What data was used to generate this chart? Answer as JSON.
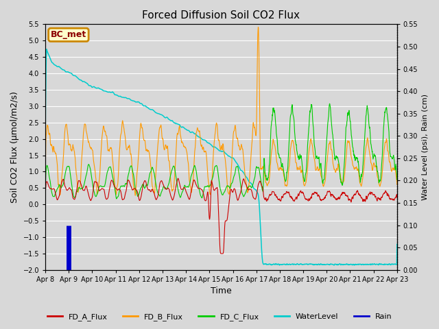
{
  "title": "Forced Diffusion Soil CO2 Flux",
  "xlabel": "Time",
  "ylabel_left": "Soil CO2 Flux (μmol/m2/s)",
  "ylabel_right": "Water Level (psi), Rain (cm)",
  "ylim_left": [
    -2.0,
    5.5
  ],
  "ylim_right": [
    0.0,
    0.55
  ],
  "xtick_labels": [
    "Apr 8",
    "Apr 9",
    "Apr 10",
    "Apr 11",
    "Apr 12",
    "Apr 13",
    "Apr 14",
    "Apr 15",
    "Apr 16",
    "Apr 17",
    "Apr 18",
    "Apr 19",
    "Apr 20",
    "Apr 21",
    "Apr 22",
    "Apr 23"
  ],
  "background_color": "#d8d8d8",
  "grid_color": "#ffffff",
  "colors": {
    "FD_A_Flux": "#cc0000",
    "FD_B_Flux": "#ff9900",
    "FD_C_Flux": "#00cc00",
    "WaterLevel": "#00cccc",
    "Rain": "#0000cc"
  },
  "legend_label": "BC_met",
  "legend_box_edgecolor": "#cc8800",
  "legend_box_facecolor": "#ffffcc",
  "legend_label_color": "#8B0000"
}
